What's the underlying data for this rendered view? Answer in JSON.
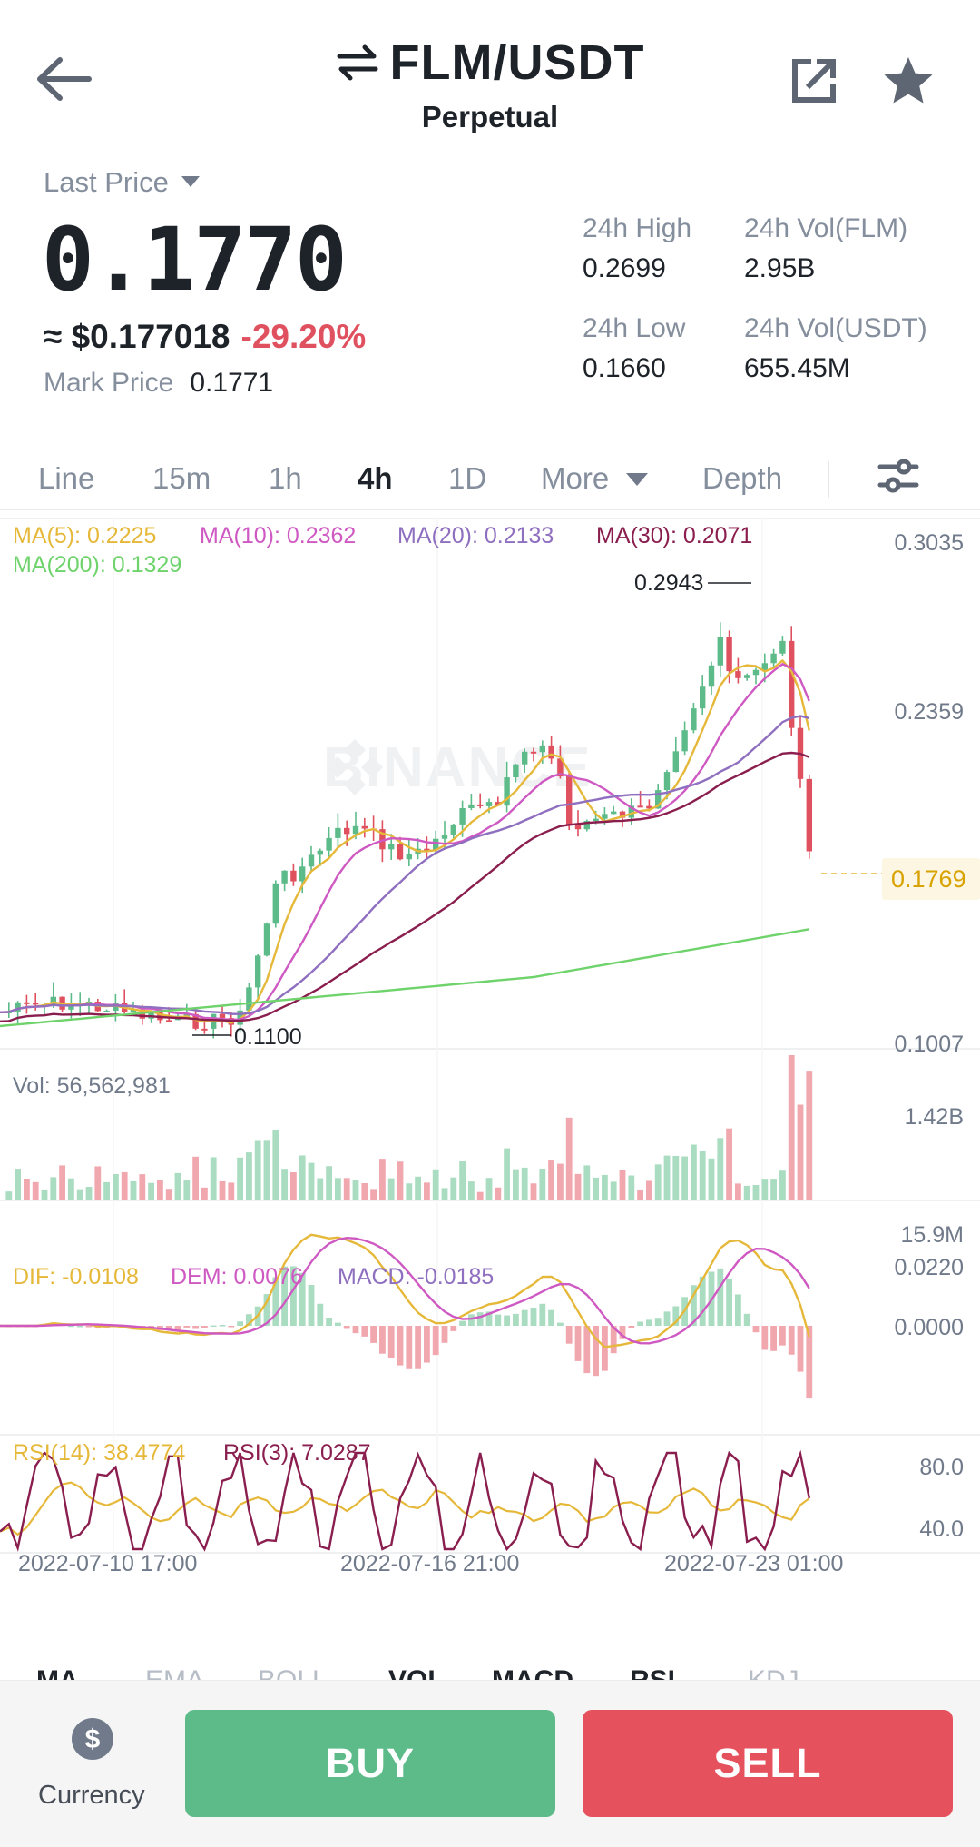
{
  "header": {
    "pair": "FLM/USDT",
    "subtitle": "Perpetual",
    "icons": [
      "back-arrow-icon",
      "swap-icon",
      "share-icon",
      "star-icon"
    ]
  },
  "price": {
    "last_price_label": "Last Price",
    "last_price": "0.1770",
    "approx_usd": "≈ $0.177018",
    "change_pct": "-29.20%",
    "mark_label": "Mark Price",
    "mark_value": "0.1771",
    "high_label": "24h High",
    "high_value": "0.2699",
    "low_label": "24h Low",
    "low_value": "0.1660",
    "vol_flm_label": "24h Vol(FLM)",
    "vol_flm_value": "2.95B",
    "vol_usdt_label": "24h Vol(USDT)",
    "vol_usdt_value": "655.45M"
  },
  "tabs": {
    "line": "Line",
    "m15": "15m",
    "h1": "1h",
    "h4": "4h",
    "d1": "1D",
    "more": "More",
    "depth": "Depth",
    "active": "4h"
  },
  "chart": {
    "ma5": "MA(5): 0.2225",
    "ma10": "MA(10): 0.2362",
    "ma20": "MA(20): 0.2133",
    "ma30": "MA(30): 0.2071",
    "ma200": "MA(200): 0.1329",
    "axis_top": "0.3035",
    "axis_mid": "0.2359",
    "axis_last": "0.1769",
    "axis_bottom": "0.1007",
    "high_mark": "0.2943",
    "low_mark": "0.1100",
    "watermark": "BINANCE",
    "vol_label": "Vol: 56,562,981",
    "vol_top": "1.42B",
    "vol_bottom": "15.9M",
    "dif": "DIF: -0.0108",
    "dem": "DEM: 0.0076",
    "macd": "MACD: -0.0185",
    "macd_top": "0.0220",
    "macd_zero": "0.0000",
    "rsi14": "RSI(14): 38.4774",
    "rsi3": "RSI(3): 7.0287",
    "rsi_80": "80.0",
    "rsi_40": "40.0",
    "time1": "2022-07-10 17:00",
    "time2": "2022-07-16 21:00",
    "time3": "2022-07-23 01:00",
    "colors": {
      "up": "#5dbb8a",
      "down": "#e0515f",
      "ma5": "#e6b83a",
      "ma10": "#cf59c2",
      "ma20": "#8f6fbf",
      "ma30": "#8a1e4e",
      "ma200": "#6fd36c"
    }
  },
  "indicator_tabs": {
    "ma": "MA",
    "ema": "EMA",
    "boll": "BOLL",
    "vol": "VOL",
    "macd": "MACD",
    "rsi": "RSI",
    "kdj": "KDJ"
  },
  "actions": {
    "currency": "Currency",
    "buy": "BUY",
    "sell": "SELL"
  }
}
